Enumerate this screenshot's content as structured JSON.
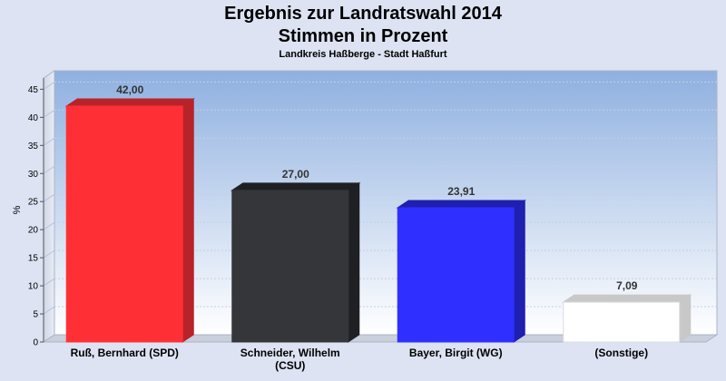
{
  "chart_data": {
    "type": "bar",
    "title": "Ergebnis zur Landratswahl 2014",
    "subtitle_line": "Stimmen in Prozent",
    "subtitle": "Landkreis Haßberge - Stadt Haßfurt",
    "ylabel": "%",
    "xlabel": "",
    "ylim": [
      0,
      47
    ],
    "yticks": [
      0,
      5,
      10,
      15,
      20,
      25,
      30,
      35,
      40,
      45
    ],
    "grid": true,
    "categories": [
      [
        "Ruß, Bernhard (SPD)"
      ],
      [
        "Schneider, Wilhelm",
        "(CSU)"
      ],
      [
        "Bayer, Birgit (WG)"
      ],
      [
        "(Sonstige)"
      ]
    ],
    "values": [
      42.0,
      27.0,
      23.91,
      7.09
    ],
    "value_labels": [
      "42,00",
      "27,00",
      "23,91",
      "7,09"
    ],
    "colors": [
      "#ff3035",
      "#35363a",
      "#2f2fff",
      "#ffffff"
    ],
    "side_colors": [
      "#b8232a",
      "#1f2024",
      "#1f1fb0",
      "#c8c8c8"
    ]
  }
}
